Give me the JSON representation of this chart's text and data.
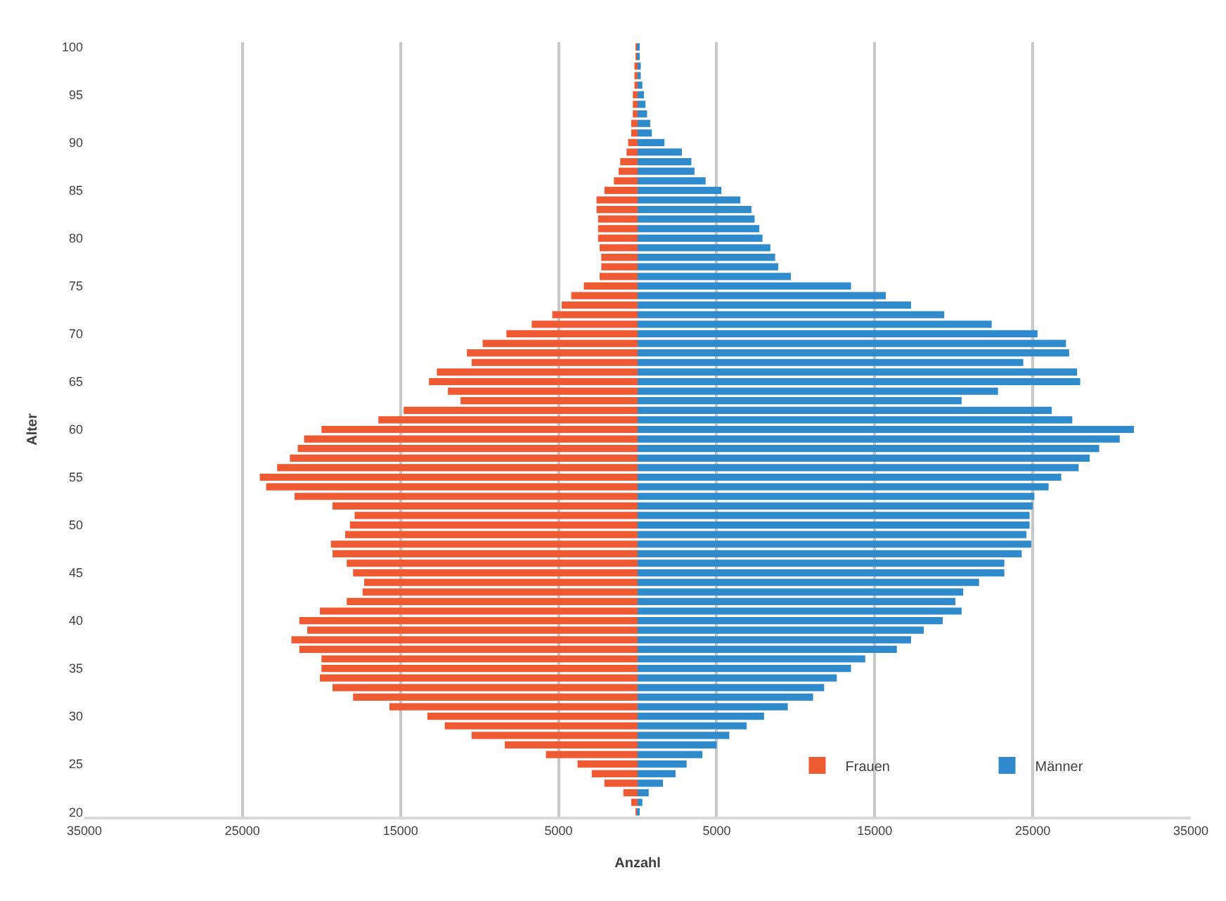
{
  "chart_data": {
    "type": "bar",
    "orientation": "horizontal",
    "xlabel": "Anzahl",
    "ylabel": "Alter",
    "categories": [
      "100",
      null,
      null,
      null,
      null,
      "95",
      null,
      null,
      null,
      null,
      "90",
      null,
      null,
      null,
      null,
      "85",
      null,
      null,
      null,
      null,
      "80",
      null,
      null,
      null,
      null,
      "75",
      null,
      null,
      null,
      null,
      "70",
      null,
      null,
      null,
      null,
      "65",
      null,
      null,
      null,
      null,
      "60",
      null,
      null,
      null,
      null,
      "55",
      null,
      null,
      null,
      null,
      "50",
      null,
      null,
      null,
      null,
      "45",
      null,
      null,
      null,
      null,
      "40",
      null,
      null,
      null,
      null,
      "35",
      null,
      null,
      null,
      null,
      "30",
      null,
      null,
      null,
      null,
      "25",
      null,
      null,
      null,
      null,
      "20"
    ],
    "series": [
      {
        "name": "Frauen",
        "color": "#ef5a32",
        "values": [
          -100,
          -100,
          -200,
          -200,
          -200,
          -300,
          -300,
          -300,
          -400,
          -400,
          -600,
          -700,
          -1100,
          -1200,
          -1500,
          -2100,
          -2600,
          -2600,
          -2500,
          -2500,
          -2500,
          -2400,
          -2300,
          -2300,
          -2400,
          -3400,
          -4200,
          -4800,
          -5400,
          -6700,
          -8300,
          -9800,
          -10800,
          -10500,
          -12700,
          -13200,
          -12000,
          -11200,
          -14800,
          -16400,
          -20000,
          -21100,
          -21500,
          -22000,
          -22800,
          -23900,
          -23500,
          -21700,
          -19300,
          -17900,
          -18200,
          -18500,
          -19400,
          -19300,
          -18400,
          -18000,
          -17300,
          -17400,
          -18400,
          -20100,
          -21400,
          -20900,
          -21900,
          -21400,
          -20000,
          -20000,
          -20100,
          -19300,
          -18000,
          -15700,
          -13300,
          -12200,
          -10500,
          -8400,
          -5800,
          -3800,
          -2900,
          -2100,
          -900,
          -400,
          -100
        ]
      },
      {
        "name": "Männer",
        "color": "#2f8bcc",
        "values": [
          100,
          100,
          200,
          200,
          300,
          400,
          500,
          600,
          800,
          900,
          1700,
          2800,
          3400,
          3600,
          4300,
          5300,
          6500,
          7200,
          7400,
          7700,
          7900,
          8400,
          8700,
          8900,
          9700,
          13500,
          15700,
          17300,
          19400,
          22400,
          25300,
          27100,
          27300,
          24400,
          27800,
          28000,
          22800,
          20500,
          26200,
          27500,
          31400,
          30500,
          29200,
          28600,
          27900,
          26800,
          26000,
          25100,
          25000,
          24800,
          24800,
          24600,
          24900,
          24300,
          23200,
          23200,
          21600,
          20600,
          20100,
          20500,
          19300,
          18100,
          17300,
          16400,
          14400,
          13500,
          12600,
          11800,
          11100,
          9500,
          8000,
          6900,
          5800,
          5000,
          4100,
          3100,
          2400,
          1600,
          700,
          300,
          100
        ]
      }
    ],
    "xlim": [
      -35000,
      35000
    ],
    "xticks": [
      {
        "value": -35000,
        "label": "35000"
      },
      {
        "value": -25000,
        "label": "25000"
      },
      {
        "value": -15000,
        "label": "15000"
      },
      {
        "value": -5000,
        "label": "5000"
      },
      5000,
      15000,
      25000,
      35000
    ],
    "stacked": true,
    "grid": "x",
    "legend": "bottom right"
  }
}
